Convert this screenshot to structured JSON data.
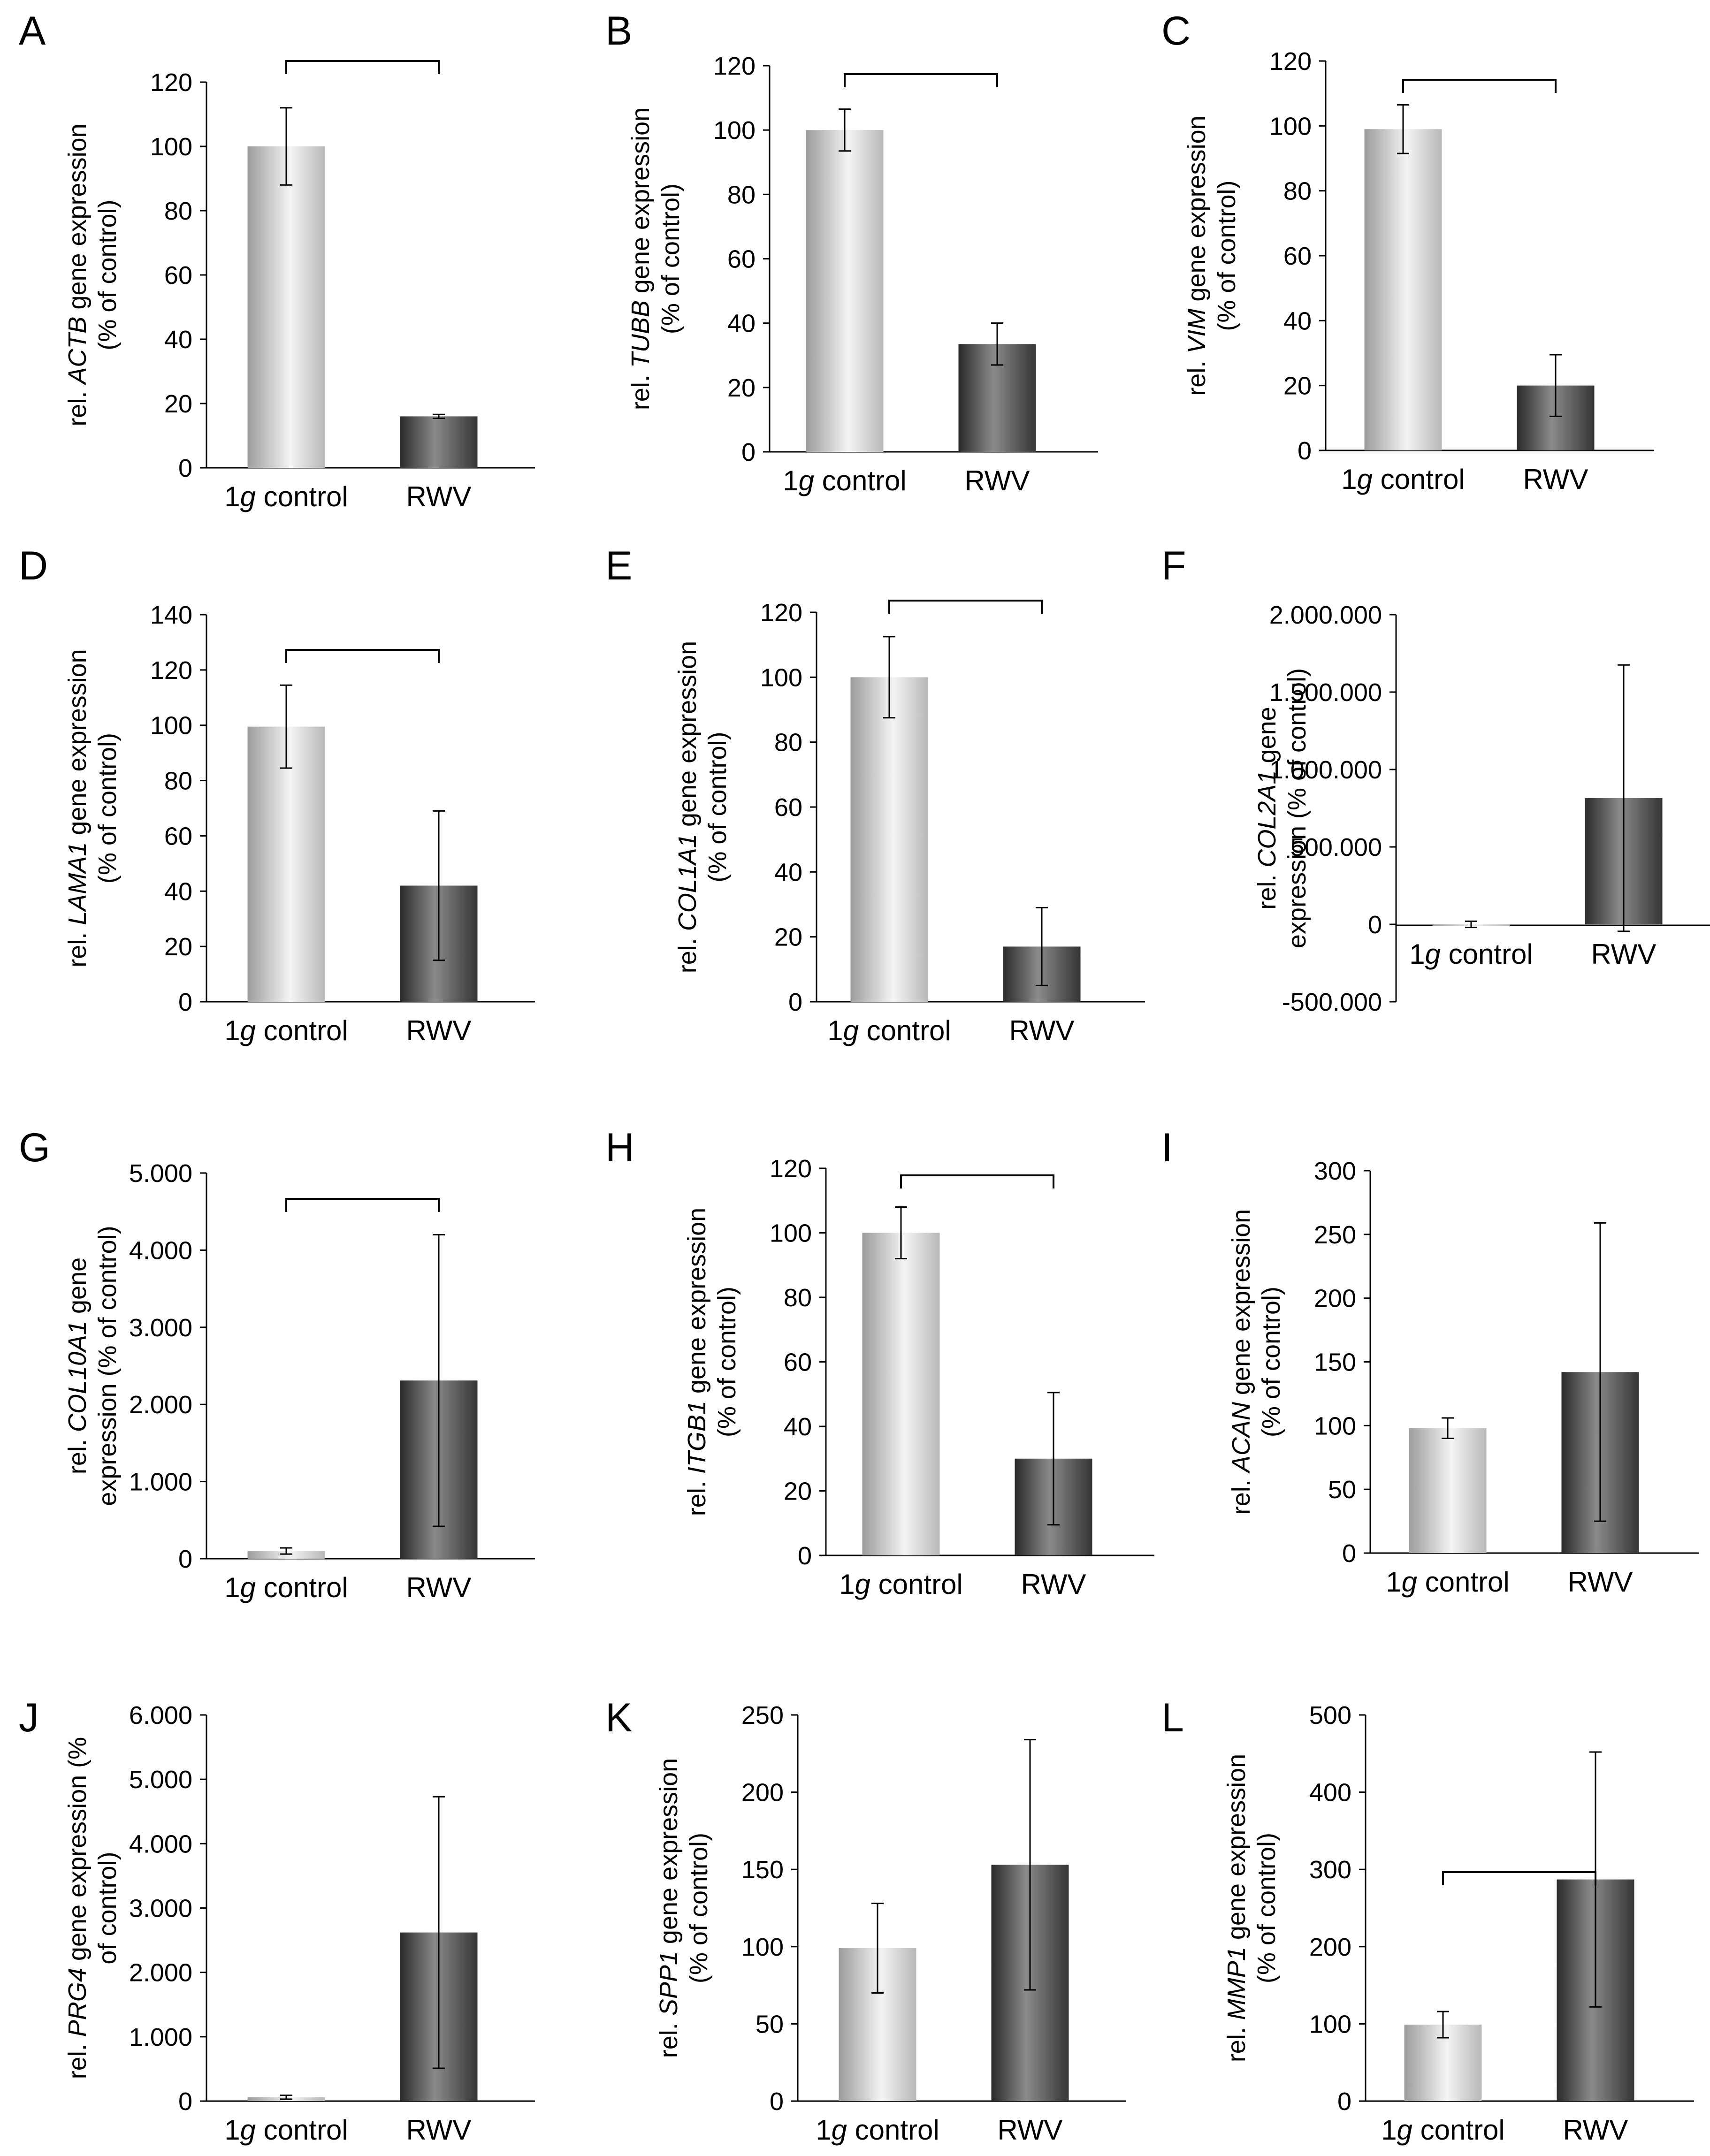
{
  "figure": {
    "x_categories": [
      {
        "pre": "1",
        "italic": "g",
        "post": " control"
      },
      {
        "pre": "RWV",
        "italic": "",
        "post": ""
      }
    ]
  },
  "chart_data": [
    {
      "type": "bar",
      "panel": "A",
      "gene": "ACTB",
      "ylabel_line1": {
        "pre": "rel. ",
        "gene": "ACTB",
        "post": " gene expression"
      },
      "ylabel_line2": "(% of control)",
      "categories": [
        "1g control",
        "RWV"
      ],
      "values": [
        100,
        16
      ],
      "errors": [
        12,
        0.6
      ],
      "ylim": [
        0,
        120
      ],
      "ticks": [
        0,
        20,
        40,
        60,
        80,
        100,
        120
      ],
      "tick_labels": [
        "0",
        "20",
        "40",
        "60",
        "80",
        "100",
        "120"
      ],
      "significance": true
    },
    {
      "type": "bar",
      "panel": "B",
      "gene": "TUBB",
      "ylabel_line1": {
        "pre": "rel. ",
        "gene": "TUBB",
        "post": " gene expression"
      },
      "ylabel_line2": "(% of control)",
      "categories": [
        "1g control",
        "RWV"
      ],
      "values": [
        100,
        33.5
      ],
      "errors": [
        6.5,
        6.5
      ],
      "ylim": [
        0,
        120
      ],
      "ticks": [
        0,
        20,
        40,
        60,
        80,
        100,
        120
      ],
      "tick_labels": [
        "0",
        "20",
        "40",
        "60",
        "80",
        "100",
        "120"
      ],
      "significance": true
    },
    {
      "type": "bar",
      "panel": "C",
      "gene": "VIM",
      "ylabel_line1": {
        "pre": "rel. ",
        "gene": "VIM",
        "post": " gene expression"
      },
      "ylabel_line2": "(% of control)",
      "categories": [
        "1g control",
        "RWV"
      ],
      "values": [
        99,
        20
      ],
      "errors": [
        7.5,
        9.5
      ],
      "ylim": [
        0,
        120
      ],
      "ticks": [
        0,
        20,
        40,
        60,
        80,
        100,
        120
      ],
      "tick_labels": [
        "0",
        "20",
        "40",
        "60",
        "80",
        "100",
        "120"
      ],
      "significance": true
    },
    {
      "type": "bar",
      "panel": "D",
      "gene": "LAMA1",
      "ylabel_line1": {
        "pre": "rel. ",
        "gene": "LAMA1",
        "post": " gene expression"
      },
      "ylabel_line2": "(% of control)",
      "categories": [
        "1g control",
        "RWV"
      ],
      "values": [
        99.5,
        42
      ],
      "errors": [
        15,
        27
      ],
      "ylim": [
        0,
        140
      ],
      "ticks": [
        0,
        20,
        40,
        60,
        80,
        100,
        120,
        140
      ],
      "tick_labels": [
        "0",
        "20",
        "40",
        "60",
        "80",
        "100",
        "120",
        "140"
      ],
      "significance": true
    },
    {
      "type": "bar",
      "panel": "E",
      "gene": "COL1A1",
      "ylabel_line1": {
        "pre": "rel. ",
        "gene": "COL1A1",
        "post": " gene expression"
      },
      "ylabel_line2": "(% of control)",
      "categories": [
        "1g control",
        "RWV"
      ],
      "values": [
        100,
        17
      ],
      "errors": [
        12.5,
        12
      ],
      "ylim": [
        0,
        120
      ],
      "ticks": [
        0,
        20,
        40,
        60,
        80,
        100,
        120
      ],
      "tick_labels": [
        "0",
        "20",
        "40",
        "60",
        "80",
        "100",
        "120"
      ],
      "significance": true
    },
    {
      "type": "bar",
      "panel": "F",
      "gene": "COL2A1",
      "ylabel_line1": {
        "pre": "rel. ",
        "gene": "COL2A1",
        "post": " gene"
      },
      "ylabel_line2": "expression (% of control)",
      "categories": [
        "1g control",
        "RWV"
      ],
      "values": [
        100,
        815000
      ],
      "errors": [
        20000,
        860000
      ],
      "ylim": [
        -500000,
        2000000
      ],
      "ticks": [
        -500000,
        0,
        500000,
        1000000,
        1500000,
        2000000
      ],
      "tick_labels": [
        "-500.000",
        "0",
        "500.000",
        "1.000.000",
        "1.500.000",
        "2.000.000"
      ],
      "significance": false
    },
    {
      "type": "bar",
      "panel": "G",
      "gene": "COL10A1",
      "ylabel_line1": {
        "pre": "rel. ",
        "gene": "COL10A1",
        "post": " gene"
      },
      "ylabel_line2": "expression (% of control)",
      "categories": [
        "1g control",
        "RWV"
      ],
      "values": [
        100,
        2310
      ],
      "errors": [
        40,
        1890
      ],
      "ylim": [
        0,
        5000
      ],
      "ticks": [
        0,
        1000,
        2000,
        3000,
        4000,
        5000
      ],
      "tick_labels": [
        "0",
        "1.000",
        "2.000",
        "3.000",
        "4.000",
        "5.000"
      ],
      "significance": true
    },
    {
      "type": "bar",
      "panel": "H",
      "gene": "ITGB1",
      "ylabel_line1": {
        "pre": "rel. ",
        "gene": "ITGB1",
        "post": " gene expression"
      },
      "ylabel_line2": "(% of control)",
      "categories": [
        "1g control",
        "RWV"
      ],
      "values": [
        100,
        30
      ],
      "errors": [
        8,
        20.5
      ],
      "ylim": [
        0,
        120
      ],
      "ticks": [
        0,
        20,
        40,
        60,
        80,
        100,
        120
      ],
      "tick_labels": [
        "0",
        "20",
        "40",
        "60",
        "80",
        "100",
        "120"
      ],
      "significance": true
    },
    {
      "type": "bar",
      "panel": "I",
      "gene": "ACAN",
      "ylabel_line1": {
        "pre": "rel. ",
        "gene": "ACAN",
        "post": "  gene expression"
      },
      "ylabel_line2": "(% of control)",
      "categories": [
        "1g control",
        "RWV"
      ],
      "values": [
        98,
        142
      ],
      "errors": [
        8,
        117
      ],
      "ylim": [
        0,
        300
      ],
      "ticks": [
        0,
        50,
        100,
        150,
        200,
        250,
        300
      ],
      "tick_labels": [
        "0",
        "50",
        "100",
        "150",
        "200",
        "250",
        "300"
      ],
      "significance": false
    },
    {
      "type": "bar",
      "panel": "J",
      "gene": "PRG4",
      "ylabel_line1": {
        "pre": "rel. ",
        "gene": "PRG4",
        "post": " gene expression (%"
      },
      "ylabel_line2": "of control)",
      "categories": [
        "1g control",
        "RWV"
      ],
      "values": [
        60,
        2620
      ],
      "errors": [
        30,
        2110
      ],
      "ylim": [
        0,
        6000
      ],
      "ticks": [
        0,
        1000,
        2000,
        3000,
        4000,
        5000,
        6000
      ],
      "tick_labels": [
        "0",
        "1.000",
        "2.000",
        "3.000",
        "4.000",
        "5.000",
        "6.000"
      ],
      "significance": false
    },
    {
      "type": "bar",
      "panel": "K",
      "gene": "SPP1",
      "ylabel_line1": {
        "pre": "rel. ",
        "gene": "SPP1",
        "post": " gene expression"
      },
      "ylabel_line2": "(% of control)",
      "categories": [
        "1g control",
        "RWV"
      ],
      "values": [
        99,
        153
      ],
      "errors": [
        29,
        81
      ],
      "ylim": [
        0,
        250
      ],
      "ticks": [
        0,
        50,
        100,
        150,
        200,
        250
      ],
      "tick_labels": [
        "0",
        "50",
        "100",
        "150",
        "200",
        "250"
      ],
      "significance": false
    },
    {
      "type": "bar",
      "panel": "L",
      "gene": "MMP1",
      "ylabel_line1": {
        "pre": "rel. ",
        "gene": "MMP1",
        "post": " gene expression"
      },
      "ylabel_line2": "(% of control)",
      "categories": [
        "1g control",
        "RWV"
      ],
      "values": [
        99,
        287
      ],
      "errors": [
        17,
        165
      ],
      "ylim": [
        0,
        500
      ],
      "ticks": [
        0,
        100,
        200,
        300,
        400,
        500
      ],
      "tick_labels": [
        "0",
        "100",
        "200",
        "300",
        "400",
        "500"
      ],
      "significance": true
    }
  ]
}
